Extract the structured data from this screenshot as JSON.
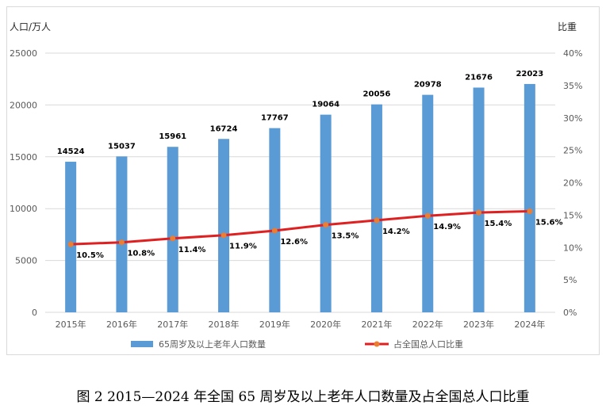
{
  "chart_data": {
    "type": "bar",
    "categories": [
      "2015年",
      "2016年",
      "2017年",
      "2018年",
      "2019年",
      "2020年",
      "2021年",
      "2022年",
      "2023年",
      "2024年"
    ],
    "series": [
      {
        "name": "65周岁及以上老年人口数量",
        "type": "bar",
        "axis": "left",
        "color": "#5b9bd5",
        "values": [
          14524,
          15037,
          15961,
          16724,
          17767,
          19064,
          20056,
          20978,
          21676,
          22023
        ],
        "labels": [
          "14524",
          "15037",
          "15961",
          "16724",
          "17767",
          "19064",
          "20056",
          "20978",
          "21676",
          "22023"
        ]
      },
      {
        "name": "占全国总人口比重",
        "type": "line",
        "axis": "right",
        "color": "#e02020",
        "marker_color": "#ed7d31",
        "values": [
          10.5,
          10.8,
          11.4,
          11.9,
          12.6,
          13.5,
          14.2,
          14.9,
          15.4,
          15.6
        ],
        "labels": [
          "10.5%",
          "10.8%",
          "11.4%",
          "11.9%",
          "12.6%",
          "13.5%",
          "14.2%",
          "14.9%",
          "15.4%",
          "15.6%"
        ]
      }
    ],
    "ylabel_left": "人口/万人",
    "ylabel_right": "比重",
    "ylim_left": [
      0,
      25000
    ],
    "ylim_right": [
      0,
      40
    ],
    "yticks_left": [
      "0",
      "5000",
      "10000",
      "15000",
      "20000",
      "25000"
    ],
    "yticks_right": [
      "0%",
      "5%",
      "10%",
      "15%",
      "20%",
      "25%",
      "30%",
      "35%",
      "40%"
    ],
    "grid": true,
    "legend_position": "bottom"
  },
  "caption": "图 2    2015—2024 年全国 65 周岁及以上老年人口数量及占全国总人口比重"
}
